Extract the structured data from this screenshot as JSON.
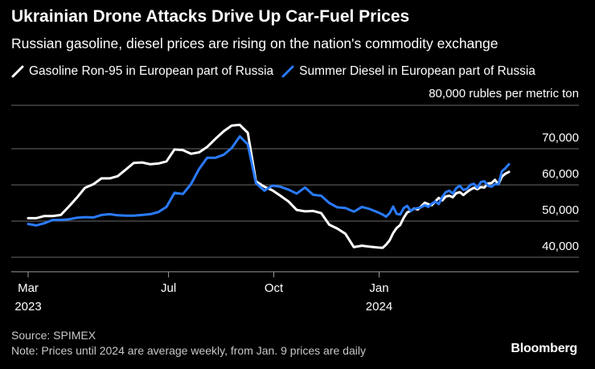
{
  "header": {
    "title": "Ukrainian Drone Attacks Drive Up Car-Fuel Prices",
    "subtitle": "Russian gasoline, diesel prices are rising on the nation's commodity exchange"
  },
  "chart_data": {
    "type": "line",
    "title": "Ukrainian Drone Attacks Drive Up Car-Fuel Prices",
    "subtitle": "Russian gasoline, diesel prices are rising on the nation's commodity exchange",
    "unit_label": "80,000 rubles per metric ton",
    "ylim": [
      36000,
      82000
    ],
    "y_ticks": [
      40000,
      50000,
      60000,
      70000
    ],
    "y_tick_labels": [
      "40,000",
      "50,000",
      "60,000",
      "70,000"
    ],
    "x_range_months": [
      0,
      14.3
    ],
    "x_ticks": [
      {
        "month": 0,
        "label": "Mar",
        "sub": "2023"
      },
      {
        "month": 4,
        "label": "Jul",
        "sub": ""
      },
      {
        "month": 7,
        "label": "Oct",
        "sub": ""
      },
      {
        "month": 10,
        "label": "Jan",
        "sub": "2024"
      }
    ],
    "grid": "horizontal",
    "legend_position": "top-left",
    "series": [
      {
        "name": "Gasoline Ron-95 in European part of Russia",
        "color": "#ffffff",
        "x": [
          0,
          0.23,
          0.46,
          0.7,
          0.93,
          1.16,
          1.39,
          1.62,
          1.86,
          2.09,
          2.32,
          2.55,
          2.78,
          3.01,
          3.25,
          3.48,
          3.71,
          3.94,
          4.17,
          4.41,
          4.64,
          4.87,
          5.1,
          5.33,
          5.57,
          5.8,
          6.03,
          6.26,
          6.49,
          6.73,
          6.96,
          7.19,
          7.42,
          7.65,
          7.89,
          8.12,
          8.35,
          8.58,
          8.81,
          9.04,
          9.28,
          9.51,
          9.74,
          9.97,
          10.1,
          10.2,
          10.3,
          10.4,
          10.5,
          10.6,
          10.7,
          10.8,
          10.9,
          11.0,
          11.1,
          11.2,
          11.3,
          11.4,
          11.5,
          11.6,
          11.7,
          11.8,
          11.9,
          12.0,
          12.1,
          12.2,
          12.3,
          12.4,
          12.5,
          12.6,
          12.7,
          12.8,
          12.9,
          13.0,
          13.1,
          13.2,
          13.3,
          13.4,
          13.5,
          13.6,
          13.7
        ],
        "values": [
          50800,
          50800,
          51400,
          51400,
          51700,
          54000,
          56500,
          59200,
          60200,
          61800,
          61800,
          62400,
          64200,
          66100,
          66200,
          65700,
          65900,
          66500,
          69800,
          69600,
          68600,
          69000,
          70500,
          72700,
          74800,
          76400,
          76600,
          74400,
          61000,
          59500,
          58500,
          57000,
          55400,
          53100,
          52700,
          52800,
          52200,
          49000,
          47900,
          46500,
          42800,
          43200,
          42900,
          42700,
          42600,
          43500,
          44700,
          46700,
          48100,
          48900,
          50900,
          52400,
          52800,
          53500,
          53200,
          54100,
          55100,
          54700,
          54400,
          55400,
          56400,
          55700,
          56800,
          57000,
          56600,
          57700,
          58000,
          57200,
          58000,
          58700,
          59200,
          58800,
          59400,
          59300,
          60400,
          60500,
          61400,
          60200,
          62300,
          63100,
          63600
        ]
      },
      {
        "name": "Summer Diesel in European part of Russia",
        "color": "#2a7bff",
        "x": [
          0,
          0.23,
          0.46,
          0.7,
          0.93,
          1.16,
          1.39,
          1.62,
          1.86,
          2.09,
          2.32,
          2.55,
          2.78,
          3.01,
          3.25,
          3.48,
          3.71,
          3.94,
          4.17,
          4.41,
          4.64,
          4.87,
          5.1,
          5.33,
          5.57,
          5.8,
          6.03,
          6.26,
          6.49,
          6.73,
          6.96,
          7.19,
          7.42,
          7.65,
          7.89,
          8.12,
          8.35,
          8.58,
          8.81,
          9.04,
          9.28,
          9.51,
          9.74,
          9.97,
          10.1,
          10.2,
          10.3,
          10.4,
          10.5,
          10.6,
          10.7,
          10.8,
          10.9,
          11.0,
          11.1,
          11.2,
          11.3,
          11.4,
          11.5,
          11.6,
          11.7,
          11.8,
          11.9,
          12.0,
          12.1,
          12.2,
          12.3,
          12.4,
          12.5,
          12.6,
          12.7,
          12.8,
          12.9,
          13.0,
          13.1,
          13.2,
          13.3,
          13.4,
          13.5,
          13.6,
          13.7
        ],
        "values": [
          49200,
          48800,
          49400,
          50300,
          50300,
          50500,
          50900,
          51100,
          51000,
          51700,
          51900,
          51600,
          51500,
          51500,
          51700,
          51900,
          52500,
          53900,
          57800,
          57500,
          60200,
          64400,
          67500,
          67500,
          68300,
          70200,
          73400,
          71200,
          60500,
          58400,
          59800,
          59500,
          58700,
          57600,
          59300,
          57300,
          57000,
          55000,
          53800,
          53600,
          52600,
          53900,
          53300,
          52400,
          51800,
          51200,
          52200,
          54000,
          52000,
          51800,
          53600,
          54200,
          52800,
          53400,
          53600,
          53800,
          54400,
          53900,
          54800,
          55400,
          54700,
          56700,
          58000,
          58400,
          57600,
          59100,
          59800,
          58600,
          58900,
          60000,
          60300,
          59200,
          60800,
          61000,
          59800,
          59500,
          60200,
          60200,
          63800,
          64600,
          65700
        ]
      }
    ],
    "source": "Source: SPIMEX",
    "note": "Note: Prices until 2024 are average weekly, from Jan. 9 prices are daily"
  },
  "branding": {
    "logo": "Bloomberg"
  }
}
